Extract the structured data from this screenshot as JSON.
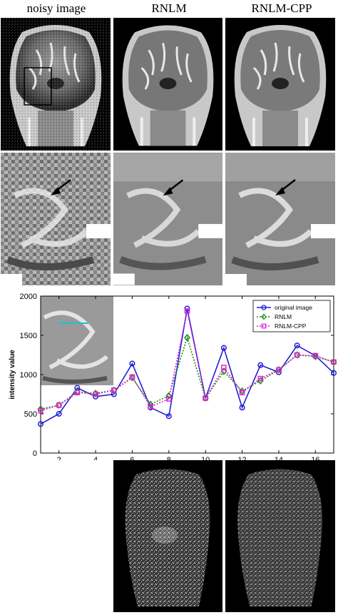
{
  "columns": {
    "noisy": "noisy image",
    "rnlm": "RNLM",
    "rnlm_cpp": "RNLM-CPP"
  },
  "chart_data": {
    "type": "line",
    "x": [
      1,
      2,
      3,
      4,
      5,
      6,
      7,
      8,
      9,
      10,
      11,
      12,
      13,
      14,
      15,
      16,
      17
    ],
    "xticks": [
      2,
      4,
      6,
      8,
      10,
      12,
      14,
      16
    ],
    "yticks": [
      0,
      500,
      1000,
      1500,
      2000
    ],
    "xlim": [
      1,
      17
    ],
    "ylim": [
      0,
      2000
    ],
    "ylabel": "intensity value",
    "xlabel": "",
    "title": "",
    "legend_position": "top-right",
    "series": [
      {
        "name": "original image",
        "color": "#1f1fd6",
        "style": "solid",
        "marker": "circle",
        "values": [
          370,
          500,
          830,
          720,
          750,
          1140,
          580,
          470,
          1840,
          700,
          1340,
          580,
          1120,
          1030,
          1370,
          1240,
          1020
        ]
      },
      {
        "name": "RNLM",
        "color": "#1a8a1a",
        "style": "dotted",
        "marker": "diamond",
        "values": [
          560,
          610,
          780,
          760,
          800,
          960,
          620,
          730,
          1470,
          700,
          1040,
          790,
          920,
          1060,
          1250,
          1230,
          1160
        ]
      },
      {
        "name": "RNLM-CPP",
        "color": "#e020d0",
        "style": "dotted",
        "marker": "square",
        "values": [
          540,
          610,
          770,
          750,
          800,
          970,
          590,
          690,
          1810,
          700,
          1090,
          770,
          950,
          1060,
          1250,
          1240,
          1160
        ]
      }
    ]
  }
}
